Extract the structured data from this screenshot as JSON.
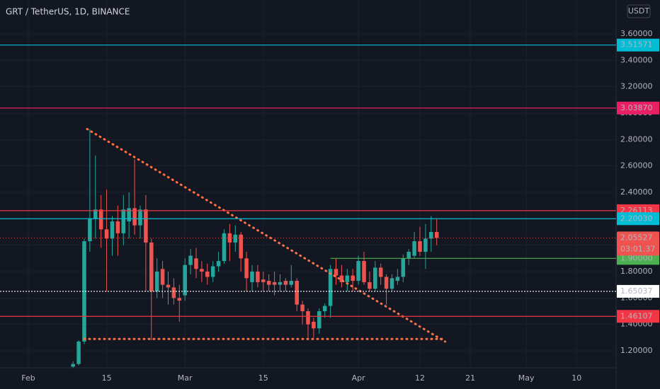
{
  "chart_data": {
    "type": "candlestick",
    "title": "GRT / TetherUS, 1D, BINANCE",
    "currency": "USDT",
    "up_color": "#26a69a",
    "down_color": "#ef5350",
    "x": [
      8,
      9,
      10,
      11,
      12,
      13,
      14,
      15,
      16,
      17,
      18,
      19,
      20,
      21,
      22,
      23,
      24,
      25,
      26,
      27,
      28,
      29,
      30,
      31,
      32,
      33,
      34,
      35,
      36,
      37,
      38,
      39,
      40,
      41,
      42,
      43,
      44,
      45,
      46,
      47,
      48,
      49,
      50,
      51,
      52,
      53,
      54,
      55,
      56,
      57,
      58,
      59,
      60,
      61,
      62,
      63,
      64,
      65,
      66,
      67,
      68,
      69,
      70,
      71,
      72,
      73
    ],
    "open": [
      1.08,
      1.1,
      1.27,
      2.03,
      2.2,
      2.27,
      2.12,
      2.05,
      2.18,
      2.09,
      2.18,
      2.28,
      2.15,
      2.27,
      2.02,
      1.65,
      1.82,
      1.7,
      1.68,
      1.6,
      1.62,
      1.85,
      1.9,
      1.82,
      1.8,
      1.76,
      1.84,
      1.88,
      2.09,
      2.02,
      2.08,
      1.9,
      1.72,
      1.8,
      1.74,
      1.73,
      1.72,
      1.7,
      1.73,
      1.7,
      1.73,
      1.55,
      1.5,
      1.42,
      1.37,
      1.5,
      1.54,
      1.82,
      1.77,
      1.72,
      1.77,
      1.73,
      1.88,
      1.72,
      1.67,
      1.83,
      1.76,
      1.67,
      1.73,
      1.76,
      1.9,
      1.92,
      2.03,
      1.95,
      2.05,
      2.1
    ],
    "high": [
      1.12,
      1.28,
      2.05,
      2.88,
      2.68,
      2.38,
      2.42,
      2.22,
      2.3,
      2.38,
      2.4,
      2.65,
      2.3,
      2.38,
      2.05,
      1.9,
      1.88,
      1.8,
      1.75,
      1.7,
      1.9,
      1.97,
      1.98,
      1.88,
      1.86,
      1.88,
      1.95,
      2.12,
      2.16,
      2.15,
      2.1,
      1.95,
      1.85,
      1.85,
      1.8,
      1.78,
      1.8,
      1.78,
      1.75,
      1.85,
      1.75,
      1.58,
      1.52,
      1.45,
      1.52,
      1.56,
      1.85,
      1.9,
      1.85,
      1.82,
      1.82,
      1.92,
      1.95,
      1.8,
      1.88,
      1.86,
      1.78,
      1.78,
      1.82,
      1.93,
      1.97,
      2.1,
      2.14,
      2.16,
      2.22,
      2.2
    ],
    "low": [
      1.07,
      1.09,
      1.25,
      1.95,
      2.05,
      1.98,
      1.65,
      1.92,
      1.92,
      2.0,
      2.05,
      2.08,
      2.05,
      1.65,
      1.28,
      1.6,
      1.6,
      1.55,
      1.55,
      1.42,
      1.58,
      1.78,
      1.75,
      1.72,
      1.7,
      1.72,
      1.8,
      1.86,
      1.88,
      1.95,
      1.8,
      1.65,
      1.65,
      1.68,
      1.65,
      1.65,
      1.62,
      1.65,
      1.65,
      1.68,
      1.5,
      1.4,
      1.3,
      1.3,
      1.33,
      1.45,
      1.45,
      1.7,
      1.68,
      1.65,
      1.65,
      1.7,
      1.7,
      1.65,
      1.65,
      1.7,
      1.55,
      1.65,
      1.7,
      1.72,
      1.85,
      1.9,
      1.92,
      1.82,
      1.95,
      2.0
    ],
    "close": [
      1.1,
      1.27,
      2.03,
      2.2,
      2.27,
      2.12,
      2.05,
      2.18,
      2.09,
      2.27,
      2.28,
      2.15,
      2.27,
      2.02,
      1.65,
      1.8,
      1.7,
      1.68,
      1.6,
      1.58,
      1.85,
      1.92,
      1.82,
      1.8,
      1.76,
      1.84,
      1.88,
      2.09,
      2.02,
      2.08,
      1.9,
      1.75,
      1.8,
      1.72,
      1.72,
      1.7,
      1.7,
      1.72,
      1.7,
      1.73,
      1.55,
      1.5,
      1.4,
      1.37,
      1.5,
      1.54,
      1.82,
      1.77,
      1.72,
      1.77,
      1.73,
      1.88,
      1.72,
      1.67,
      1.83,
      1.76,
      1.67,
      1.75,
      1.76,
      1.9,
      1.95,
      2.03,
      1.95,
      2.05,
      2.1,
      2.055
    ],
    "xlim": [
      -5.06,
      105.06
    ],
    "ylim": [
      1.0714,
      3.857
    ],
    "xticks": [
      {
        "value": 0,
        "label": "Feb"
      },
      {
        "value": 14,
        "label": "15"
      },
      {
        "value": 28,
        "label": "Mar"
      },
      {
        "value": 42,
        "label": "15"
      },
      {
        "value": 59,
        "label": "Apr"
      },
      {
        "value": 70,
        "label": "12"
      },
      {
        "value": 79,
        "label": "21"
      },
      {
        "value": 89,
        "label": "May"
      },
      {
        "value": 98,
        "label": "10"
      }
    ],
    "yticks": [
      {
        "value": 1.2,
        "label": "1.20000"
      },
      {
        "value": 1.4,
        "label": "1.40000"
      },
      {
        "value": 1.6,
        "label": "1.60000"
      },
      {
        "value": 1.8,
        "label": "1.80000"
      },
      {
        "value": 2.0,
        "label": "2.00000"
      },
      {
        "value": 2.2,
        "label": "2.20000"
      },
      {
        "value": 2.4,
        "label": "2.40000"
      },
      {
        "value": 2.6,
        "label": "2.60000"
      },
      {
        "value": 2.8,
        "label": "2.80000"
      },
      {
        "value": 3.0,
        "label": "3.00000"
      },
      {
        "value": 3.2,
        "label": "3.20000"
      },
      {
        "value": 3.4,
        "label": "3.40000"
      },
      {
        "value": 3.6,
        "label": "3.60000"
      }
    ],
    "levels": [
      {
        "value": 3.51571,
        "label": "3.51571",
        "color": "#00bcd4",
        "text_color": "#131722",
        "dash": false
      },
      {
        "value": 3.0387,
        "label": "3.03870",
        "color": "#e91e63",
        "text_color": "#ffffff",
        "dash": false
      },
      {
        "value": 2.26113,
        "label": "2.26113",
        "color": "#f23645",
        "text_color": "#ffffff",
        "dash": false
      },
      {
        "value": 2.2003,
        "label": "2.20030",
        "color": "#00bcd4",
        "text_color": "#131722",
        "dash": false
      },
      {
        "value": 1.9,
        "label": "1.90000",
        "color": "#4caf50",
        "text_color": "#ffffff",
        "dash": false,
        "from": 54
      },
      {
        "value": 1.65037,
        "label": "1.65037",
        "color": "#ffffff",
        "text_color": "#131722",
        "dash": true
      },
      {
        "value": 1.46107,
        "label": "1.46107",
        "color": "#f23645",
        "text_color": "#ffffff",
        "dash": false
      }
    ],
    "last_price": {
      "value": 2.05527,
      "label": "2.05527",
      "countdown": "03:01:37",
      "color": "#ef5350"
    },
    "trendlines": [
      {
        "x": [
          10.5,
          74.5
        ],
        "y": [
          2.88,
          1.27
        ],
        "color": "#ff7043"
      },
      {
        "x": [
          10,
          74
        ],
        "y": [
          1.29,
          1.29
        ],
        "color": "#ff7043"
      }
    ]
  }
}
